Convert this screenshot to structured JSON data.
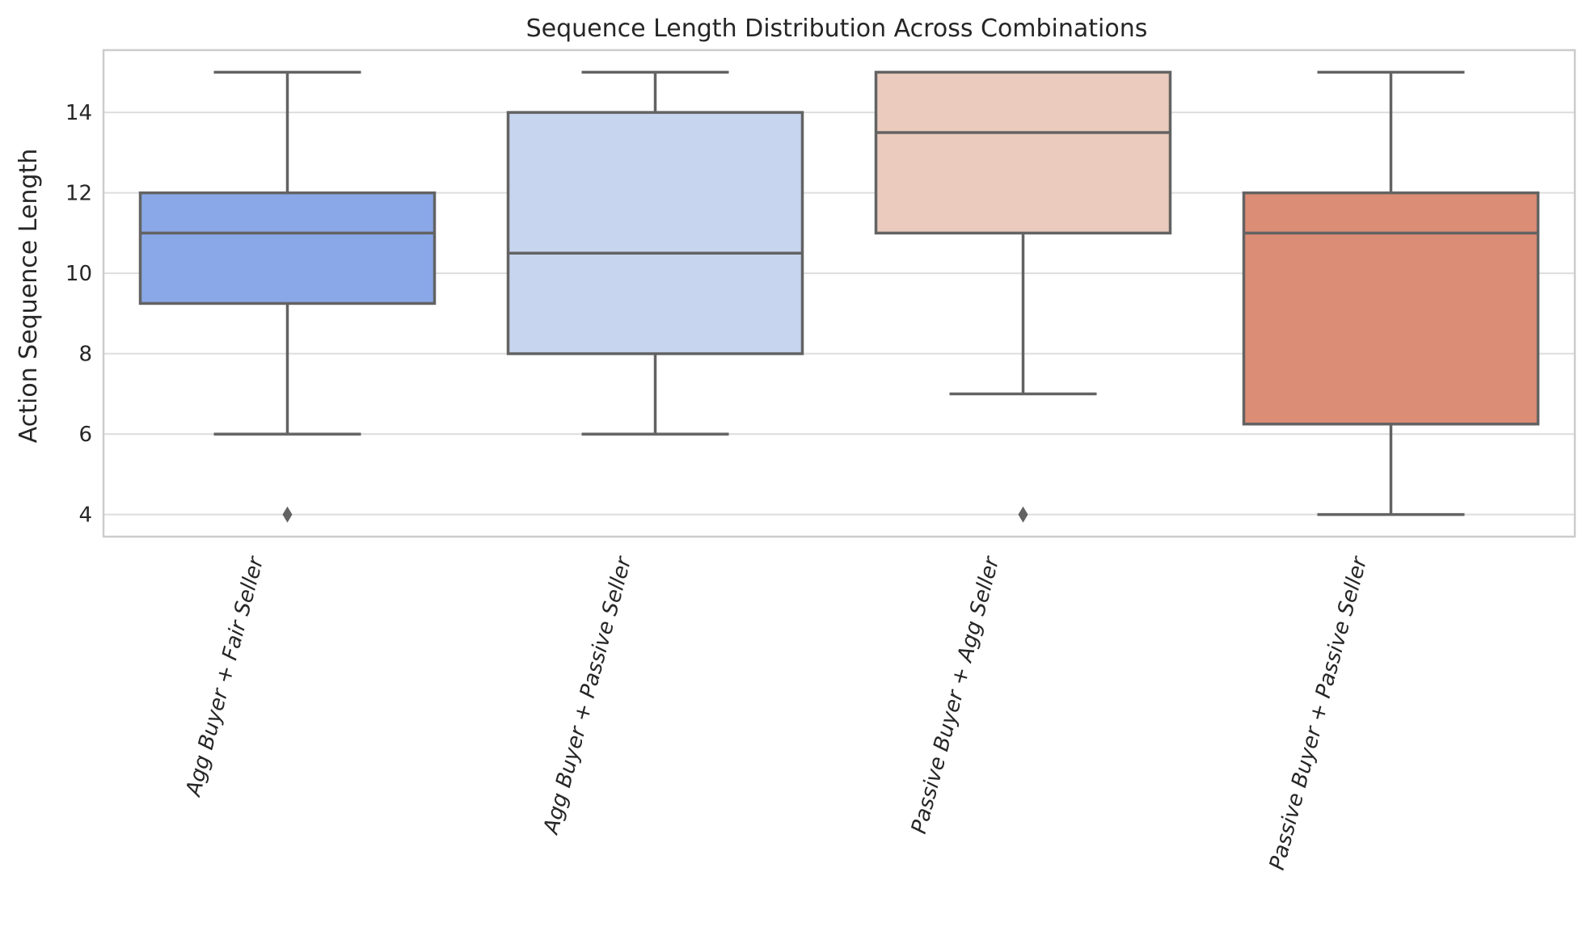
{
  "chart_data": {
    "type": "box",
    "title": "Sequence Length Distribution Across Combinations",
    "xlabel": "",
    "ylabel": "Action Sequence Length",
    "ylim": [
      3.45,
      15.55
    ],
    "yticks": [
      4,
      6,
      8,
      10,
      12,
      14
    ],
    "grid": true,
    "categories": [
      "Agg Buyer + Fair Seller",
      "Agg Buyer + Passive Seller",
      "Passive Buyer + Agg Seller",
      "Passive Buyer + Passive Seller"
    ],
    "boxes": [
      {
        "whisker_low": 6,
        "q1": 9.25,
        "median": 11,
        "q3": 12,
        "whisker_high": 15,
        "outliers": [
          4
        ],
        "color": "#8aa8e8"
      },
      {
        "whisker_low": 6,
        "q1": 8,
        "median": 10.5,
        "q3": 14,
        "whisker_high": 15,
        "outliers": [],
        "color": "#c7d5ef"
      },
      {
        "whisker_low": 7,
        "q1": 11,
        "median": 13.5,
        "q3": 15,
        "whisker_high": 15,
        "outliers": [
          4
        ],
        "color": "#eacbbd"
      },
      {
        "whisker_low": 4,
        "q1": 6.25,
        "median": 11,
        "q3": 12,
        "whisker_high": 15,
        "outliers": [],
        "color": "#dc8d76"
      }
    ]
  }
}
